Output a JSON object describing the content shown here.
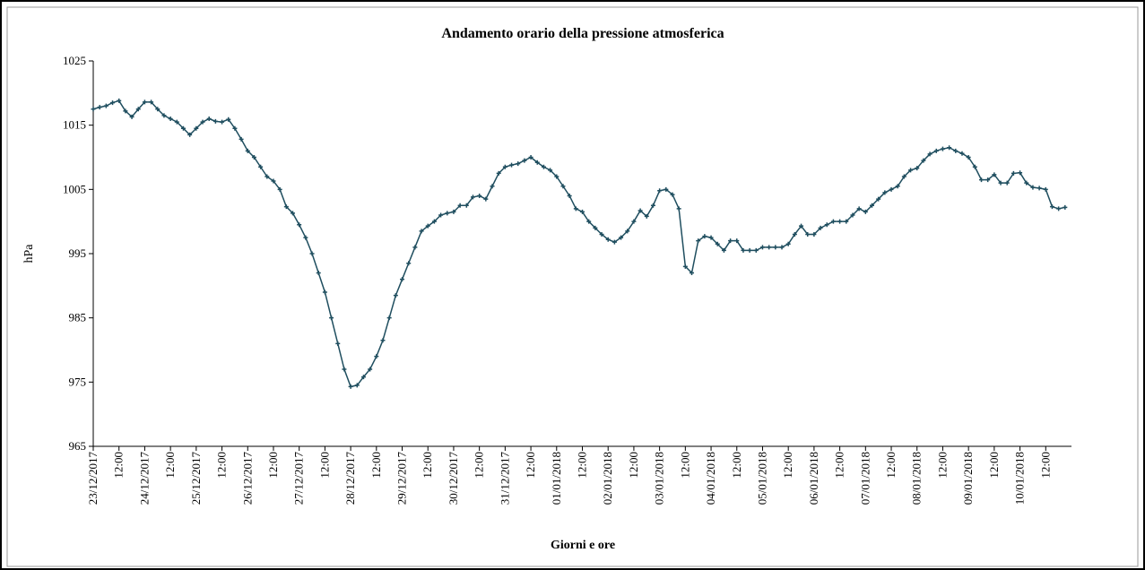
{
  "chart_data": {
    "type": "line",
    "title": "Andamento orario della pressione atmosferica",
    "x_label": "Giorni e ore",
    "y_label": "hPa",
    "color": "#1f4e5f",
    "ylim": [
      965,
      1025
    ],
    "yticks": [
      965,
      975,
      985,
      995,
      1005,
      1015,
      1025
    ],
    "categories": [
      "23/12/2017",
      null,
      null,
      null,
      "12:00",
      null,
      null,
      null,
      "24/12/2017",
      null,
      null,
      null,
      "12:00",
      null,
      null,
      null,
      "25/12/2017",
      null,
      null,
      null,
      "12:00",
      null,
      null,
      null,
      "26/12/2017",
      null,
      null,
      null,
      "12:00",
      null,
      null,
      null,
      "27/12/2017",
      null,
      null,
      null,
      "12:00",
      null,
      null,
      null,
      "28/12/2017",
      null,
      null,
      null,
      "12:00",
      null,
      null,
      null,
      "29/12/2017",
      null,
      null,
      null,
      "12:00",
      null,
      null,
      null,
      "30/12/2017",
      null,
      null,
      null,
      "12:00",
      null,
      null,
      null,
      "31/12/2017",
      null,
      null,
      null,
      "12:00",
      null,
      null,
      null,
      "01/01/2018",
      null,
      null,
      null,
      "12:00",
      null,
      null,
      null,
      "02/01/2018",
      null,
      null,
      null,
      "12:00",
      null,
      null,
      null,
      "03/01/2018",
      null,
      null,
      null,
      "12:00",
      null,
      null,
      null,
      "04/01/2018",
      null,
      null,
      null,
      "12:00",
      null,
      null,
      null,
      "05/01/2018",
      null,
      null,
      null,
      "12:00",
      null,
      null,
      null,
      "06/01/2018",
      null,
      null,
      null,
      "12:00",
      null,
      null,
      null,
      "07/01/2018",
      null,
      null,
      null,
      "12:00",
      null,
      null,
      null,
      "08/01/2018",
      null,
      null,
      null,
      "12:00",
      null,
      null,
      null,
      "09/01/2018",
      null,
      null,
      null,
      "12:00",
      null,
      null,
      null,
      "10/01/2018",
      null,
      null,
      null,
      "12:00",
      null,
      null,
      null
    ],
    "values": [
      1017.5,
      1017.8,
      1018.0,
      1018.5,
      1018.8,
      1017.2,
      1016.3,
      1017.5,
      1018.6,
      1018.6,
      1017.5,
      1016.5,
      1016.0,
      1015.5,
      1014.5,
      1013.5,
      1014.5,
      1015.5,
      1016.0,
      1015.6,
      1015.5,
      1015.9,
      1014.5,
      1012.8,
      1011.0,
      1010.0,
      1008.5,
      1007.0,
      1006.3,
      1005.0,
      1002.3,
      1001.3,
      999.5,
      997.5,
      995.0,
      992.0,
      989.0,
      985.0,
      981.0,
      977.0,
      974.3,
      974.5,
      975.8,
      977.0,
      979.0,
      981.5,
      985.0,
      988.5,
      991.0,
      993.5,
      996.0,
      998.5,
      999.3,
      1000.0,
      1001.0,
      1001.3,
      1001.5,
      1002.5,
      1002.5,
      1003.8,
      1004.0,
      1003.5,
      1005.5,
      1007.5,
      1008.5,
      1008.8,
      1009.0,
      1009.5,
      1010.0,
      1009.2,
      1008.5,
      1008.0,
      1007.0,
      1005.5,
      1004.0,
      1002.0,
      1001.5,
      1000.0,
      999.0,
      998.0,
      997.2,
      996.8,
      997.5,
      998.5,
      1000.0,
      1001.7,
      1000.8,
      1002.5,
      1004.8,
      1005.0,
      1004.2,
      1002.0,
      993.0,
      992.0,
      997.0,
      997.7,
      997.5,
      996.5,
      995.5,
      997.0,
      997.0,
      995.5,
      995.5,
      995.5,
      996.0,
      996.0,
      996.0,
      996.0,
      996.5,
      998.0,
      999.3,
      998.0,
      998.0,
      999.0,
      999.5,
      1000.0,
      1000.0,
      1000.0,
      1001.0,
      1002.0,
      1001.5,
      1002.5,
      1003.5,
      1004.5,
      1005.0,
      1005.5,
      1007.0,
      1008.0,
      1008.3,
      1009.5,
      1010.5,
      1011.0,
      1011.3,
      1011.5,
      1011.0,
      1010.6,
      1010.0,
      1008.5,
      1006.5,
      1006.5,
      1007.3,
      1006.0,
      1006.0,
      1007.5,
      1007.6,
      1006.0,
      1005.3,
      1005.2,
      1005.0,
      1002.3,
      1002.0,
      1002.2
    ]
  }
}
